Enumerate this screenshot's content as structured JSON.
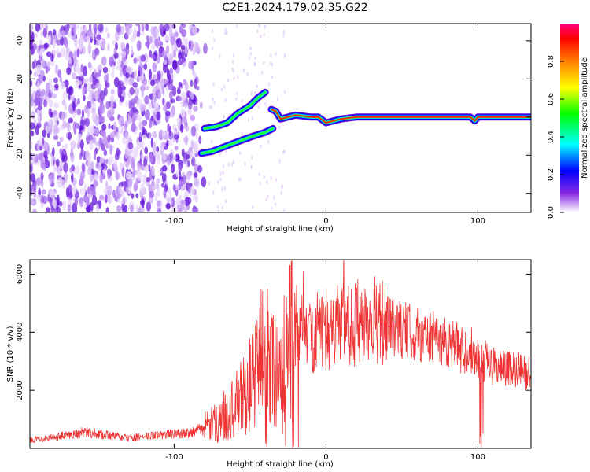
{
  "title": "C2E1.2024.179.02.35.G22",
  "chart_data": [
    {
      "type": "heatmap",
      "xlabel": "Height of straight line (km)",
      "ylabel": "Frequency (Hz)",
      "xlim": [
        -195,
        135
      ],
      "ylim": [
        -50,
        49
      ],
      "xticks": [
        -100,
        0,
        100
      ],
      "yticks": [
        -40,
        -20,
        0,
        20,
        40
      ],
      "colorbar": {
        "label": "Normalized spectral amplitude",
        "range": [
          0,
          1
        ],
        "ticks": [
          0.0,
          0.2,
          0.4,
          0.6,
          0.8
        ]
      },
      "tracks": [
        {
          "x": [
            -80,
            -72,
            -65,
            -58,
            -50,
            -45,
            -40
          ],
          "y": [
            -6,
            -5,
            -3,
            2,
            6,
            10,
            13
          ]
        },
        {
          "x": [
            -82,
            -75,
            -65,
            -55,
            -48,
            -40,
            -35
          ],
          "y": [
            -19,
            -18,
            -15,
            -12,
            -10,
            -8,
            -6
          ]
        },
        {
          "x": [
            -36,
            -33,
            -30,
            -25,
            -20,
            -10,
            -5,
            0,
            5,
            10,
            20,
            40,
            95,
            98,
            100,
            135
          ],
          "y": [
            4,
            3,
            -1,
            0,
            1,
            0,
            0,
            -3,
            -2,
            -1,
            0,
            0,
            0,
            -2,
            0,
            0
          ]
        }
      ]
    },
    {
      "type": "line",
      "xlabel": "Height of straight line (km)",
      "ylabel": "SNR (10 * v/v)",
      "xlim": [
        -195,
        135
      ],
      "ylim": [
        0,
        6500
      ],
      "xticks": [
        -100,
        0,
        100
      ],
      "yticks": [
        2000,
        4000,
        6000
      ],
      "color": "#ee3333",
      "envelope": {
        "x": [
          -195,
          -170,
          -160,
          -150,
          -130,
          -110,
          -90,
          -80,
          -75,
          -70,
          -60,
          -50,
          -45,
          -40,
          -35,
          -30,
          -25,
          -20,
          -15,
          -10,
          -5,
          0,
          5,
          10,
          20,
          30,
          40,
          50,
          60,
          70,
          80,
          90,
          95,
          100,
          102,
          105,
          110,
          120,
          135
        ],
        "y": [
          300,
          450,
          550,
          500,
          350,
          450,
          550,
          700,
          800,
          1000,
          1400,
          2200,
          3000,
          3300,
          2800,
          2500,
          3500,
          4500,
          3800,
          3900,
          4100,
          3700,
          4100,
          4400,
          4300,
          4500,
          4200,
          4100,
          3900,
          3800,
          3700,
          3400,
          3400,
          3200,
          2900,
          3000,
          2800,
          2700,
          2600
        ]
      }
    }
  ]
}
